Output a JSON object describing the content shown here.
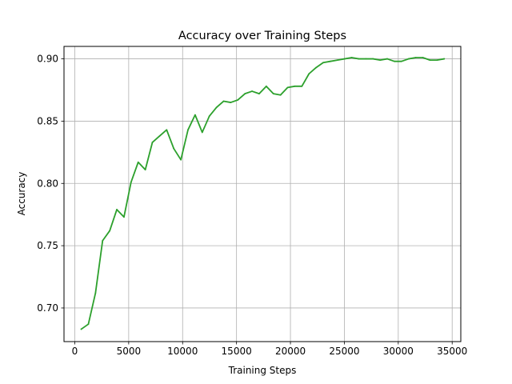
{
  "chart_data": {
    "type": "line",
    "title": "Accuracy over Training Steps",
    "xlabel": "Training Steps",
    "ylabel": "Accuracy",
    "xlim": [
      -1000,
      35800
    ],
    "ylim": [
      0.673,
      0.91
    ],
    "xticks": [
      0,
      5000,
      10000,
      15000,
      20000,
      25000,
      30000,
      35000
    ],
    "xtick_labels": [
      "0",
      "5000",
      "10000",
      "15000",
      "20000",
      "25000",
      "30000",
      "35000"
    ],
    "yticks": [
      0.7,
      0.75,
      0.8,
      0.85,
      0.9
    ],
    "ytick_labels": [
      "0.70",
      "0.75",
      "0.80",
      "0.85",
      "0.90"
    ],
    "grid": true,
    "series": [
      {
        "color": "#2ca02c",
        "x": [
          600,
          1260,
          1920,
          2580,
          3240,
          3900,
          4560,
          5220,
          5880,
          6540,
          7200,
          7860,
          8520,
          9180,
          9840,
          10500,
          11160,
          11820,
          12480,
          13140,
          13800,
          14460,
          15120,
          15780,
          16440,
          17100,
          17760,
          18420,
          19080,
          19740,
          20400,
          21060,
          21720,
          22380,
          23040,
          23700,
          24360,
          25020,
          25680,
          26340,
          27000,
          27660,
          28320,
          28980,
          29640,
          30300,
          30960,
          31620,
          32280,
          32940,
          33600,
          34260
        ],
        "y": [
          0.683,
          0.687,
          0.712,
          0.754,
          0.762,
          0.779,
          0.773,
          0.801,
          0.817,
          0.811,
          0.833,
          0.838,
          0.843,
          0.828,
          0.819,
          0.843,
          0.855,
          0.841,
          0.854,
          0.861,
          0.866,
          0.865,
          0.867,
          0.872,
          0.874,
          0.872,
          0.878,
          0.872,
          0.871,
          0.877,
          0.878,
          0.878,
          0.888,
          0.893,
          0.897,
          0.898,
          0.899,
          0.9,
          0.901,
          0.9,
          0.9,
          0.9,
          0.899,
          0.9,
          0.898,
          0.898,
          0.9,
          0.901,
          0.901,
          0.899,
          0.899,
          0.9
        ]
      }
    ]
  }
}
